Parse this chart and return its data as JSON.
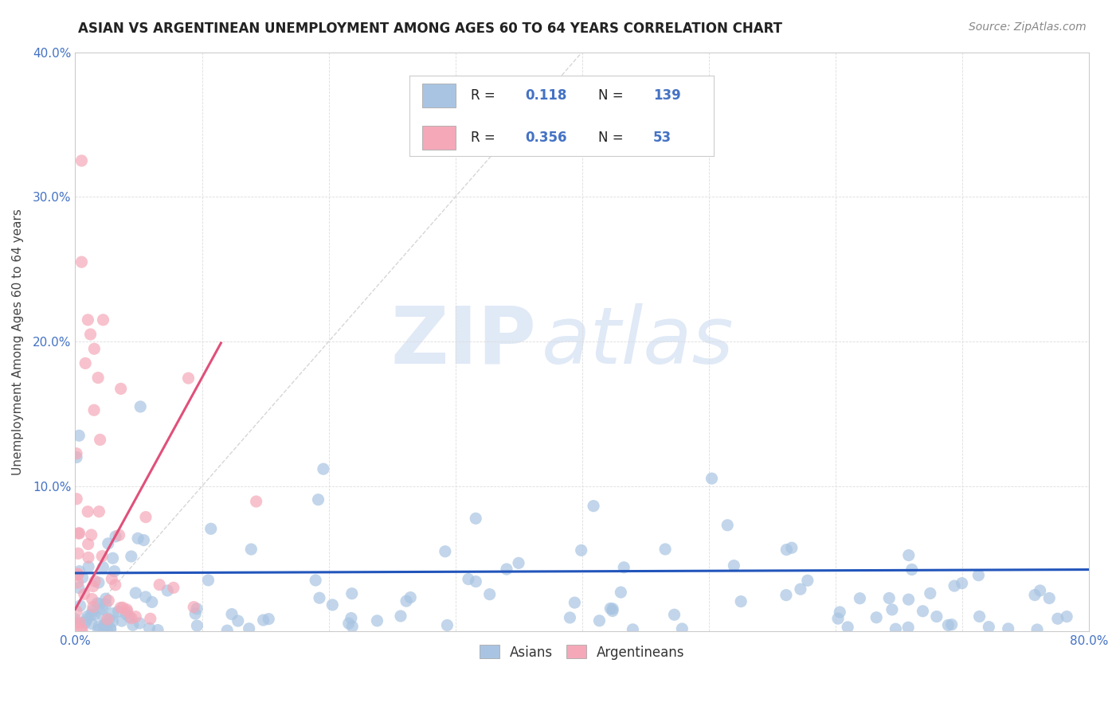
{
  "title": "ASIAN VS ARGENTINEAN UNEMPLOYMENT AMONG AGES 60 TO 64 YEARS CORRELATION CHART",
  "source": "Source: ZipAtlas.com",
  "ylabel": "Unemployment Among Ages 60 to 64 years",
  "xlim": [
    0.0,
    0.8
  ],
  "ylim": [
    0.0,
    0.4
  ],
  "asian_color": "#a8c4e2",
  "argentinean_color": "#f4a8b8",
  "asian_line_color": "#2255bb",
  "argentinean_line_color": "#e0507a",
  "diag_line_color": "#cccccc",
  "R_asian": 0.118,
  "N_asian": 139,
  "R_argentinean": 0.356,
  "N_argentinean": 53,
  "watermark_zip": "ZIP",
  "watermark_atlas": "atlas",
  "legend_text_color": "#222222",
  "legend_value_color": "#4472c4",
  "title_color": "#222222",
  "source_color": "#888888",
  "tick_color": "#4472c4",
  "ylabel_color": "#444444"
}
